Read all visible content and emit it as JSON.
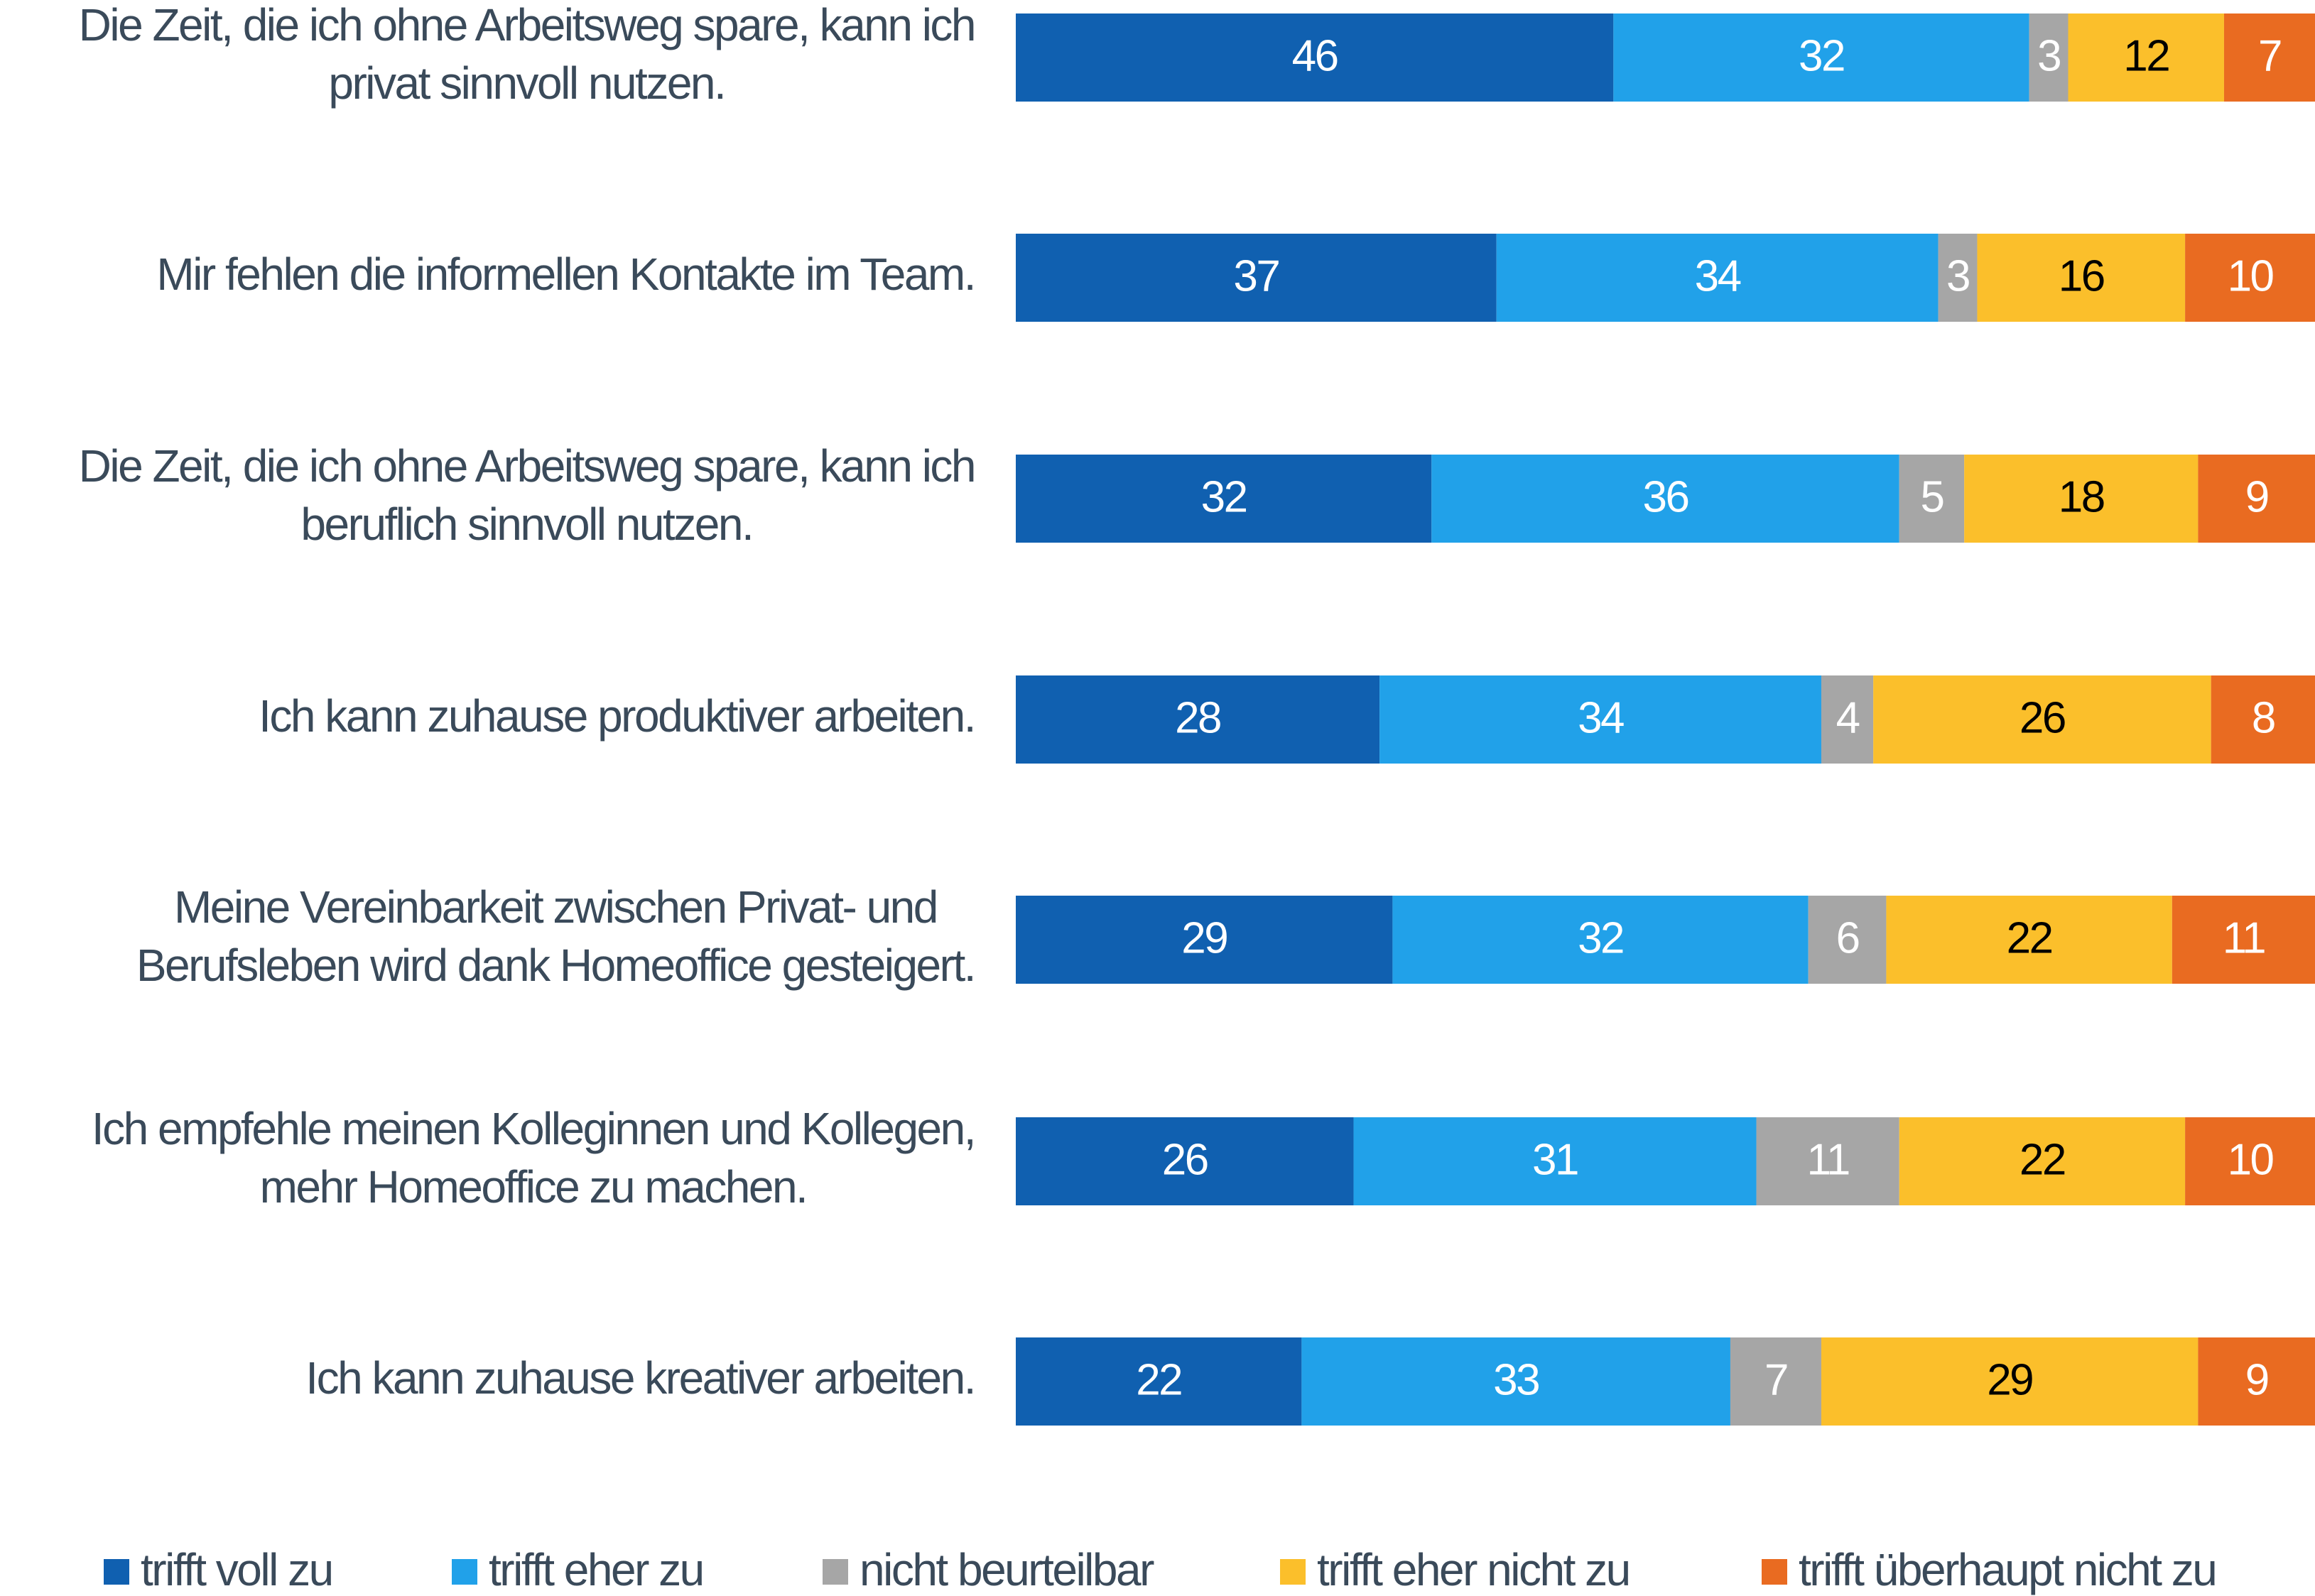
{
  "chart_data": {
    "type": "stacked-barh",
    "categories": [
      "Die Zeit, die ich ohne Arbeitsweg spare, kann ich\nprivat sinnvoll nutzen.",
      "Mir fehlen die informellen Kontakte im Team.",
      "Die Zeit, die ich ohne Arbeitsweg spare, kann ich\nberuflich sinnvoll nutzen.",
      "Ich kann zuhause produktiver arbeiten.",
      "Meine Vereinbarkeit zwischen Privat- und\nBerufsleben wird dank Homeoffice gesteigert.",
      "Ich empfehle meinen Kolleginnen und Kollegen,\nmehr Homeoffice zu machen.",
      "Ich kann zuhause kreativer arbeiten."
    ],
    "series": [
      {
        "name": "trifft voll zu",
        "color": "#1060b0",
        "values": [
          46,
          37,
          32,
          28,
          29,
          26,
          22
        ]
      },
      {
        "name": "trifft eher zu",
        "color": "#21a1e9",
        "values": [
          32,
          34,
          36,
          34,
          32,
          31,
          33
        ]
      },
      {
        "name": "nicht beurteilbar",
        "color": "#a6a6a6",
        "values": [
          3,
          3,
          5,
          4,
          6,
          11,
          7
        ]
      },
      {
        "name": "trifft eher nicht zu",
        "color": "#fbbf2b",
        "values": [
          12,
          16,
          18,
          26,
          22,
          22,
          29
        ]
      },
      {
        "name": "trifft überhaupt nicht zu",
        "color": "#e96b21",
        "values": [
          7,
          10,
          9,
          8,
          11,
          10,
          9
        ]
      }
    ],
    "xlim": [
      0,
      100
    ],
    "legend": "bottom"
  }
}
